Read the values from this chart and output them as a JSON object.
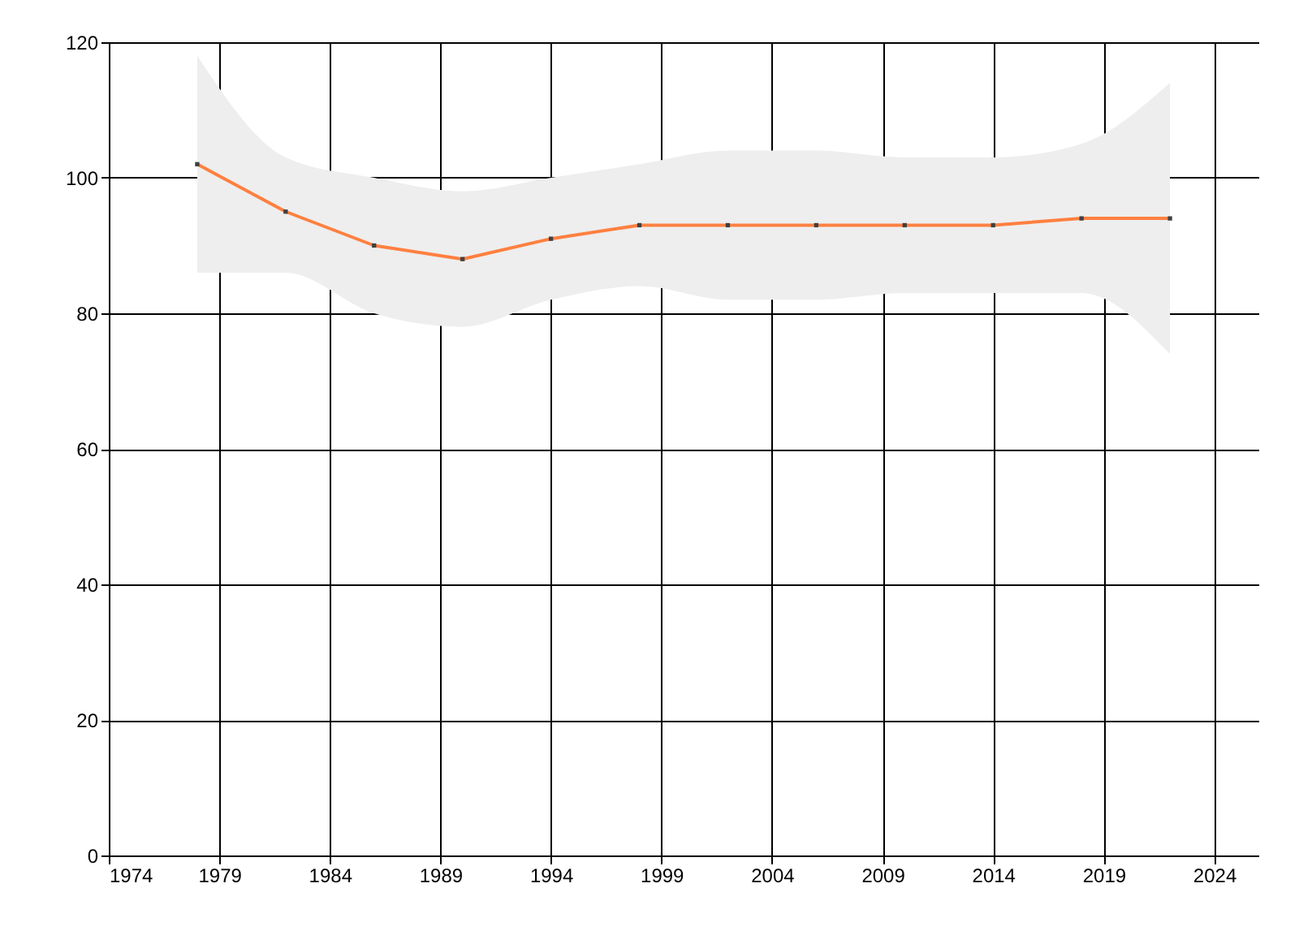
{
  "chart_data": {
    "type": "line",
    "x": [
      1978,
      1982,
      1986,
      1990,
      1994,
      1998,
      2002,
      2006,
      2010,
      2014,
      2018,
      2022
    ],
    "series": [
      {
        "color": "#ff8040",
        "values": [
          102,
          95,
          90,
          88,
          91,
          93,
          93,
          93,
          93,
          93,
          94,
          94
        ],
        "lower": [
          86,
          86,
          80,
          78,
          82,
          84,
          82,
          82,
          83,
          83,
          83,
          74
        ],
        "upper": [
          118,
          103,
          100,
          98,
          100,
          102,
          104,
          104,
          103,
          103,
          105,
          114
        ]
      }
    ],
    "xlim": [
      1974,
      2026
    ],
    "xticks": [
      1974,
      1979,
      1984,
      1989,
      1994,
      1999,
      2004,
      2009,
      2014,
      2019,
      2024
    ],
    "ylim": [
      0,
      120
    ],
    "yticks": [
      0,
      20,
      40,
      60,
      80,
      100,
      120
    ],
    "grid": true,
    "marker": "square",
    "line_style": "solid"
  }
}
